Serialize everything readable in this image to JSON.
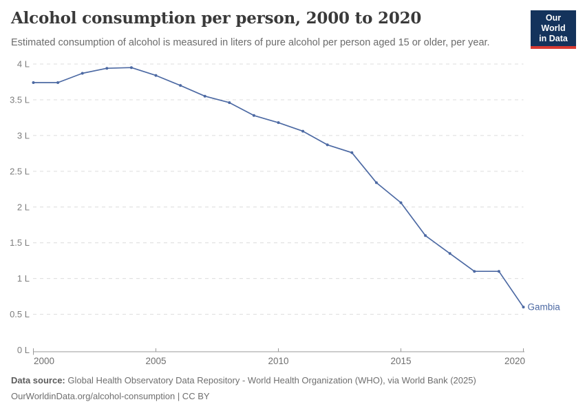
{
  "header": {
    "title": "Alcohol consumption per person, 2000 to 2020",
    "subtitle": "Estimated consumption of alcohol is measured in liters of pure alcohol per person aged 15 or older, per year.",
    "logo": {
      "line1": "Our World",
      "line2": "in Data"
    }
  },
  "chart_data": {
    "type": "line",
    "title": "Alcohol consumption per person, 2000 to 2020",
    "xlabel": "",
    "ylabel": "liters of pure alcohol per person",
    "unit_suffix": " L",
    "x": [
      2000,
      2001,
      2002,
      2003,
      2004,
      2005,
      2006,
      2007,
      2008,
      2009,
      2010,
      2011,
      2012,
      2013,
      2014,
      2015,
      2016,
      2017,
      2018,
      2019,
      2020
    ],
    "series": [
      {
        "name": "Gambia",
        "values": [
          3.74,
          3.74,
          3.87,
          3.94,
          3.95,
          3.84,
          3.7,
          3.55,
          3.46,
          3.28,
          3.18,
          3.06,
          2.87,
          2.76,
          2.34,
          2.06,
          1.6,
          1.35,
          1.1,
          1.1,
          0.6
        ]
      }
    ],
    "ylim": [
      0,
      4
    ],
    "ytick_step": 0.5,
    "xticks": [
      2000,
      2005,
      2010,
      2015,
      2020
    ],
    "grid": "horizontal-dashed",
    "legend_position": "end-of-line-label",
    "end_label": "Gambia"
  },
  "footer": {
    "data_source_label": "Data source:",
    "data_source_text": " Global Health Observatory Data Repository - World Health Organization (WHO), via World Bank (2025)",
    "license_line": "OurWorldinData.org/alcohol-consumption | CC BY"
  },
  "colors": {
    "line": "#4c69a3",
    "grid": "#dcdcdc",
    "axis": "#999999",
    "ytick_label": "#7d7d7d",
    "xtick_label": "#6e6e6e",
    "logo_bg": "#14335c",
    "logo_red": "#d93a32"
  }
}
